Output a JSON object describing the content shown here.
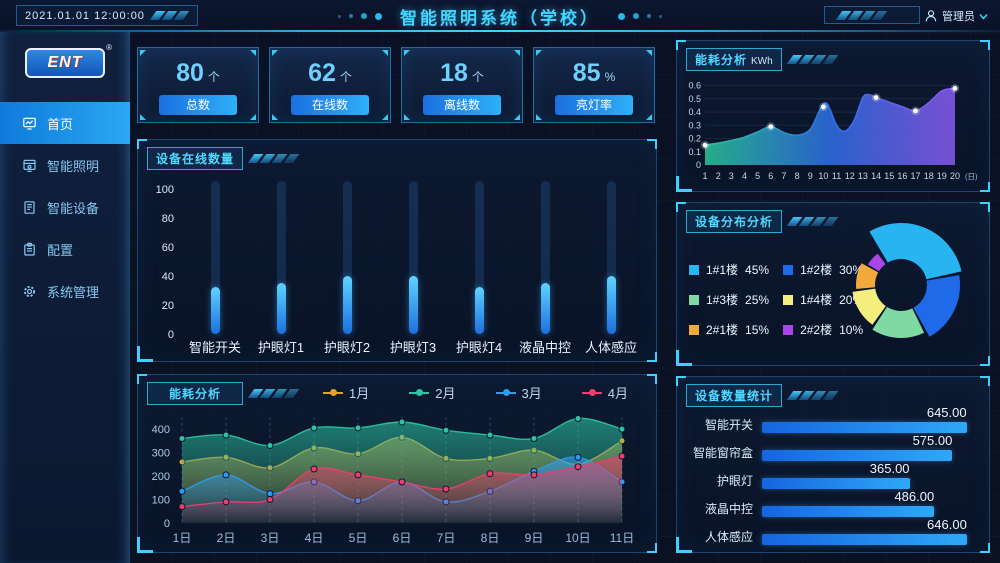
{
  "colors": {
    "accent": "#38c8f6",
    "panel_border": "#2a6eaa",
    "bar_top": "#5fd3ff",
    "bar_bottom": "#1c6fe0",
    "pill_left": "#1b6fe0",
    "pill_right": "#2fb0f8"
  },
  "header": {
    "time": "2021.01.01 12:00:00",
    "title": "智能照明系统（学校）",
    "admin_label": "管理员",
    "admin_icon": "person-icon",
    "chevron_icon": "chevron-down-icon"
  },
  "sidebar": {
    "logo_text": "ENT",
    "logo_reg": "®",
    "items": [
      {
        "label": "首页",
        "icon": "home-icon",
        "active": true
      },
      {
        "label": "智能照明",
        "icon": "lighting-icon",
        "active": false
      },
      {
        "label": "智能设备",
        "icon": "device-icon",
        "active": false
      },
      {
        "label": "配置",
        "icon": "config-icon",
        "active": false
      },
      {
        "label": "系统管理",
        "icon": "gear-icon",
        "active": false
      }
    ]
  },
  "stats": [
    {
      "value": "80",
      "unit": "个",
      "label": "总数"
    },
    {
      "value": "62",
      "unit": "个",
      "label": "在线数"
    },
    {
      "value": "18",
      "unit": "个",
      "label": "离线数"
    },
    {
      "value": "85",
      "unit": "%",
      "label": "亮灯率"
    }
  ],
  "chart_data": [
    {
      "id": "device-online",
      "type": "bar",
      "title": "设备在线数量",
      "categories": [
        "智能开关",
        "护眼灯1",
        "护眼灯2",
        "护眼灯3",
        "护眼灯4",
        "液晶中控",
        "人体感应"
      ],
      "values": [
        32,
        35,
        40,
        40,
        32,
        35,
        40
      ],
      "track_value": 105,
      "ylim": [
        0,
        110
      ],
      "yticks": [
        0,
        20,
        40,
        60,
        80,
        100
      ],
      "grid": false,
      "bar_gradient": [
        "#5fd3ff",
        "#1c6fe0"
      ]
    },
    {
      "id": "energy-daily",
      "type": "area",
      "title": "能耗分析",
      "unit": "KWh",
      "x_suffix": "(日)",
      "xticks": [
        1,
        2,
        3,
        4,
        5,
        6,
        7,
        8,
        9,
        10,
        11,
        12,
        13,
        14,
        15,
        16,
        17,
        18,
        19,
        20
      ],
      "yticks": [
        0,
        0.1,
        0.2,
        0.3,
        0.4,
        0.5,
        0.6
      ],
      "ylim": [
        0,
        0.65
      ],
      "gradient": [
        "#2bc79c",
        "#2e6fe8",
        "#8a5af0"
      ],
      "curve": [
        [
          1,
          0.15
        ],
        [
          2,
          0.165
        ],
        [
          3,
          0.185
        ],
        [
          4,
          0.21
        ],
        [
          5,
          0.25
        ],
        [
          6,
          0.29
        ],
        [
          7,
          0.245
        ],
        [
          8,
          0.225
        ],
        [
          9,
          0.27
        ],
        [
          9.8,
          0.43
        ],
        [
          10.3,
          0.46
        ],
        [
          11,
          0.3
        ],
        [
          11.6,
          0.255
        ],
        [
          12.3,
          0.33
        ],
        [
          13,
          0.51
        ],
        [
          13.5,
          0.53
        ],
        [
          14,
          0.51
        ],
        [
          15,
          0.475
        ],
        [
          16,
          0.44
        ],
        [
          17,
          0.41
        ],
        [
          18,
          0.47
        ],
        [
          19,
          0.56
        ],
        [
          20,
          0.58
        ]
      ],
      "markers": [
        [
          1,
          0.15
        ],
        [
          6,
          0.29
        ],
        [
          10,
          0.44
        ],
        [
          14,
          0.51
        ],
        [
          17,
          0.41
        ],
        [
          20,
          0.58
        ]
      ]
    },
    {
      "id": "device-distribution",
      "type": "pie",
      "title": "设备分布分析",
      "inner_radius": 26,
      "legend_position": "left",
      "slices": [
        {
          "label": "1#1楼",
          "pct": 45,
          "pct_label": "45%",
          "color": "#28b4f0",
          "radius": 62
        },
        {
          "label": "1#2楼",
          "pct": 30,
          "pct_label": "30%",
          "color": "#1f6ae8",
          "radius": 59
        },
        {
          "label": "1#3楼",
          "pct": 25,
          "pct_label": "25%",
          "color": "#7fd9a2",
          "radius": 53
        },
        {
          "label": "1#4楼",
          "pct": 20,
          "pct_label": "20%",
          "color": "#f4ee7e",
          "radius": 49
        },
        {
          "label": "2#1楼",
          "pct": 15,
          "pct_label": "15%",
          "color": "#f2a93b",
          "radius": 45
        },
        {
          "label": "2#2楼",
          "pct": 10,
          "pct_label": "10%",
          "color": "#aa46e8",
          "radius": 39
        }
      ]
    },
    {
      "id": "energy-monthly",
      "type": "area-multi",
      "title": "能耗分析",
      "legend_position": "top",
      "categories": [
        "1日",
        "2日",
        "3日",
        "4日",
        "5日",
        "6日",
        "7日",
        "8日",
        "9日",
        "10日",
        "11日"
      ],
      "yticks": [
        0,
        100,
        200,
        300,
        400
      ],
      "ylim": [
        0,
        460
      ],
      "grid": "vertical-dashed",
      "series": [
        {
          "name": "1月",
          "color": "#e2a02c",
          "values": [
            260,
            280,
            235,
            320,
            295,
            365,
            275,
            275,
            310,
            250,
            350
          ]
        },
        {
          "name": "2月",
          "color": "#2cc5a2",
          "values": [
            360,
            375,
            330,
            405,
            405,
            430,
            395,
            375,
            360,
            445,
            400
          ]
        },
        {
          "name": "3月",
          "color": "#2f9bf0",
          "values": [
            135,
            205,
            125,
            175,
            95,
            175,
            90,
            135,
            220,
            280,
            175
          ]
        },
        {
          "name": "4月",
          "color": "#ef3d6d",
          "values": [
            70,
            90,
            100,
            230,
            205,
            175,
            145,
            210,
            205,
            240,
            285
          ]
        }
      ]
    },
    {
      "id": "device-count",
      "type": "hbar",
      "title": "设备数量统计",
      "bar_max": 646,
      "rows": [
        {
          "label": "智能开关",
          "value": 645,
          "value_label": "645.00"
        },
        {
          "label": "智能窗帘盒",
          "value": 575,
          "value_label": "575.00"
        },
        {
          "label": "护眼灯",
          "value": 365,
          "value_label": "365.00"
        },
        {
          "label": "液晶中控",
          "value": 486,
          "value_label": "486.00"
        },
        {
          "label": "人体感应",
          "value": 646,
          "value_label": "646.00"
        }
      ]
    }
  ]
}
